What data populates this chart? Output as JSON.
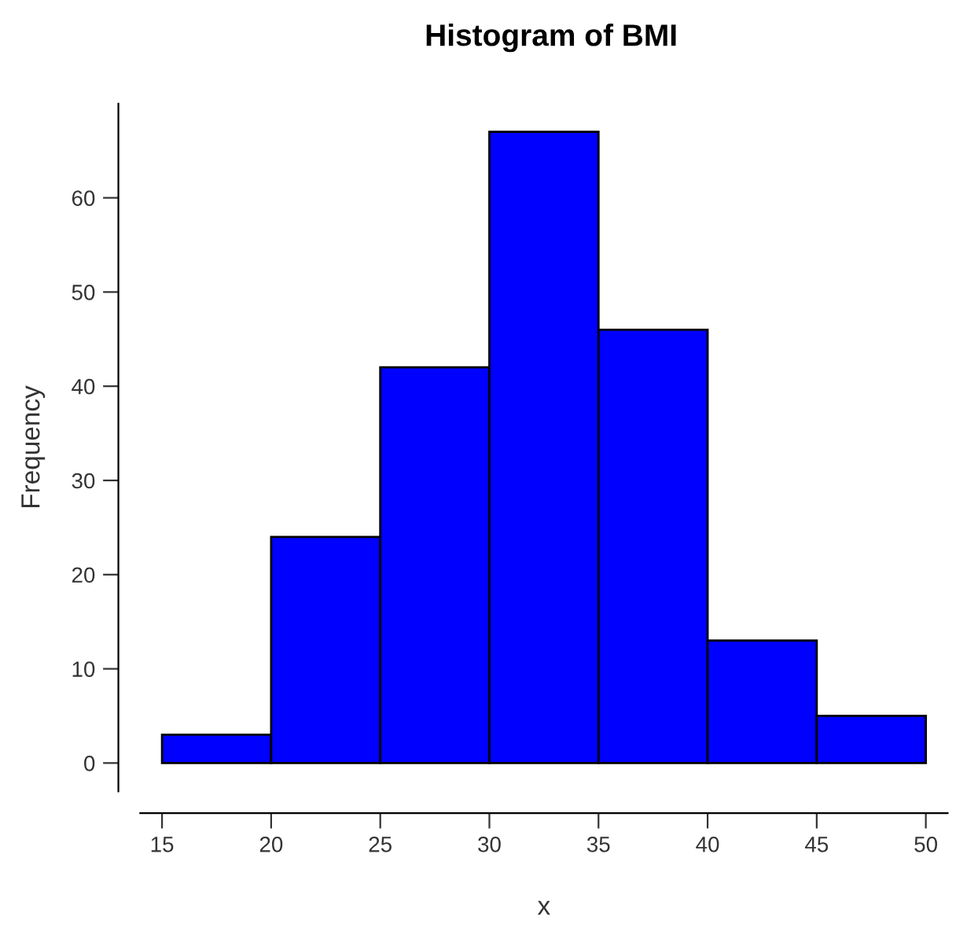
{
  "chart_data": {
    "type": "histogram",
    "title": "Histogram of BMI",
    "xlabel": "x",
    "ylabel": "Frequency",
    "bins": [
      15,
      20,
      25,
      30,
      35,
      40,
      45,
      50
    ],
    "values": [
      3,
      24,
      42,
      67,
      46,
      13,
      5
    ],
    "color": "#0000ff",
    "xlim": [
      14,
      51
    ],
    "ylim": [
      -3,
      70
    ],
    "xticks": [
      15,
      20,
      25,
      30,
      35,
      40,
      45,
      50
    ],
    "yticks": [
      0,
      10,
      20,
      30,
      40,
      50,
      60
    ],
    "grid": false,
    "legend": false
  }
}
